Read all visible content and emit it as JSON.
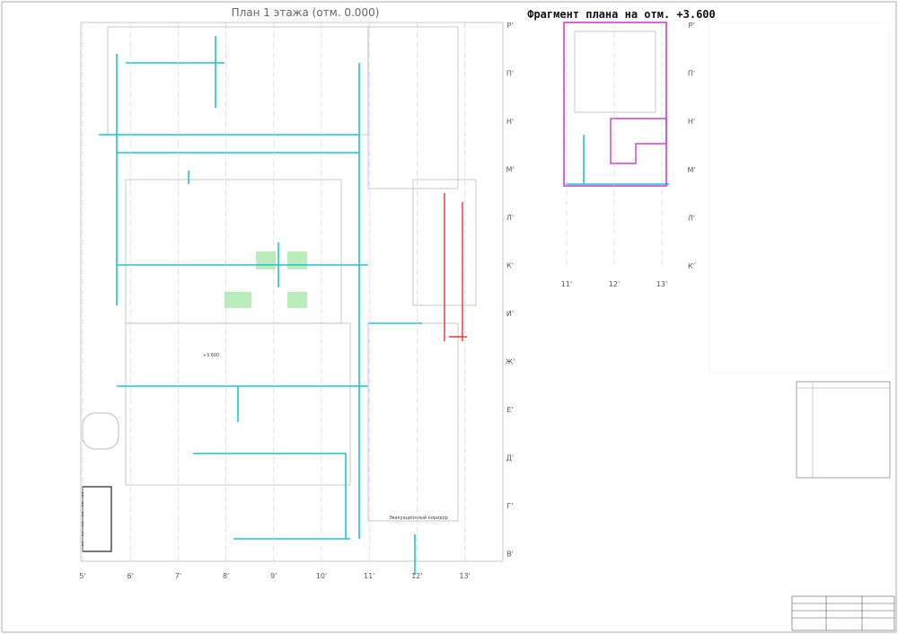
{
  "main_plan": {
    "title": "План 1 этажа (отм. 0.000)",
    "columns": [
      "5'",
      "6'",
      "7'",
      "8'",
      "9'",
      "10'",
      "11'",
      "12'",
      "13'"
    ],
    "rows": [
      "Р'",
      "П'",
      "Н'",
      "М'",
      "Л'",
      "К'",
      "И'",
      "Ж'",
      "Е'",
      "Д'",
      "Г'",
      "В'"
    ]
  },
  "fragment": {
    "title": "Фрагмент плана на отм. +3.600",
    "columns": [
      "11'",
      "12'",
      "13'"
    ],
    "rows": [
      "Р'",
      "П'",
      "Н'",
      "М'",
      "Л'",
      "К'"
    ]
  },
  "labels": [
    "Эвакуационный коридор",
    "+3.600"
  ]
}
